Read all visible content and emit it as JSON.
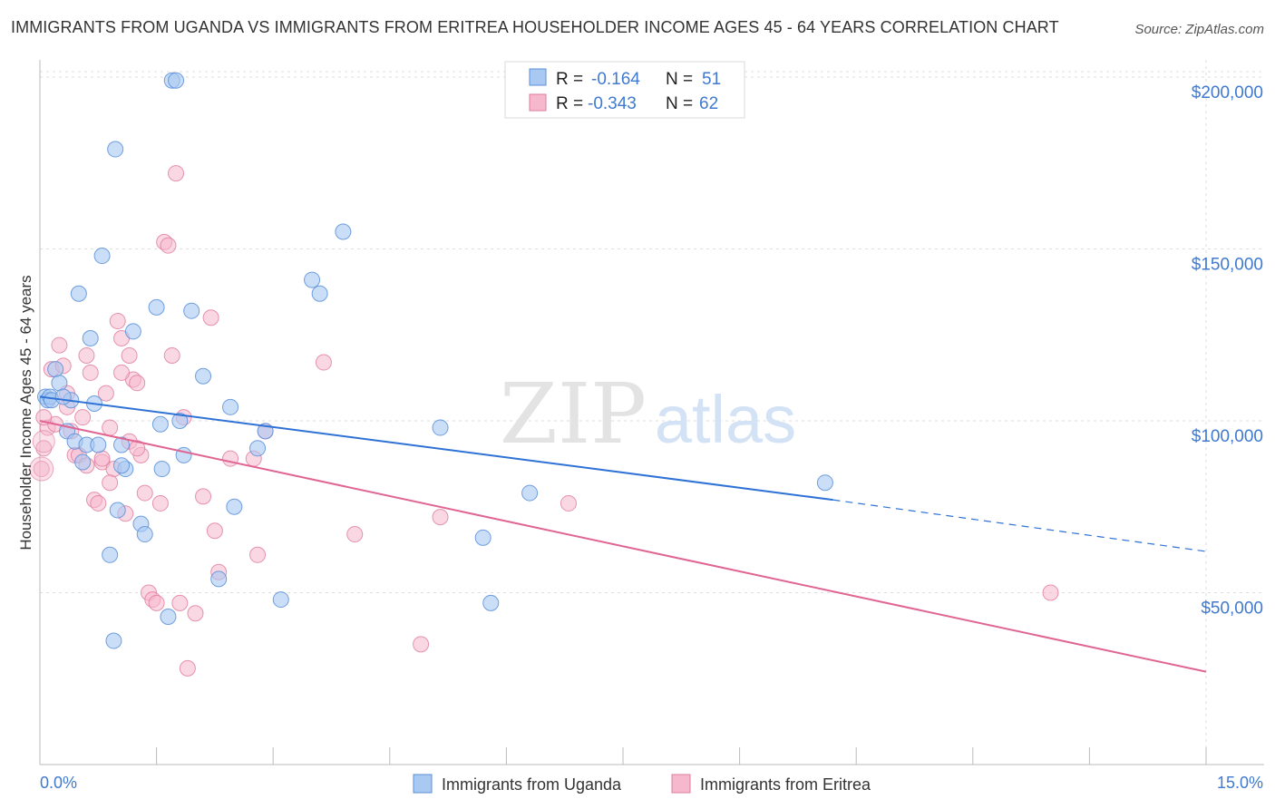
{
  "title": "IMMIGRANTS FROM UGANDA VS IMMIGRANTS FROM ERITREA HOUSEHOLDER INCOME AGES 45 - 64 YEARS CORRELATION CHART",
  "source": "Source: ZipAtlas.com",
  "watermark": {
    "zip": "ZIP",
    "atlas": "atlas"
  },
  "colors": {
    "uganda_fill": "#a9c8f2",
    "uganda_stroke": "#5b8fd9",
    "uganda_line": "#2f72d6",
    "eritrea_fill": "#f6b8cc",
    "eritrea_stroke": "#e07a9d",
    "eritrea_line": "#e06593",
    "axis_text": "#3f7ad0",
    "grid": "#dddddd"
  },
  "legend_top": [
    {
      "r_label": "R = ",
      "r_value": "-0.164",
      "n_label": "N = ",
      "n_value": "51"
    },
    {
      "r_label": "R = ",
      "r_value": "-0.343",
      "n_label": "N = ",
      "n_value": "62"
    }
  ],
  "chart_data": {
    "type": "scatter",
    "ylabel": "Householder Income Ages 45 - 64 years",
    "xlim": [
      0,
      15
    ],
    "ylim": [
      0,
      205000
    ],
    "x_tick_labels": [
      "0.0%",
      "15.0%"
    ],
    "y_ticks": [
      {
        "value": 50000,
        "label": "$50,000"
      },
      {
        "value": 100000,
        "label": "$100,000"
      },
      {
        "value": 150000,
        "label": "$150,000"
      },
      {
        "value": 200000,
        "label": "$200,000"
      }
    ],
    "grid": true,
    "series": [
      {
        "name": "Immigrants from Uganda",
        "trend": {
          "x0": 0,
          "y0": 107000,
          "x1": 10.2,
          "y1": 77000,
          "x_dash_end": 15,
          "y_dash_end": 62000
        },
        "points": [
          [
            0.07,
            107000
          ],
          [
            0.1,
            106000
          ],
          [
            0.13,
            107000
          ],
          [
            0.15,
            106000
          ],
          [
            0.2,
            115000
          ],
          [
            0.25,
            111000
          ],
          [
            0.35,
            97000
          ],
          [
            0.4,
            106000
          ],
          [
            0.45,
            94000
          ],
          [
            0.5,
            137000
          ],
          [
            0.55,
            88000
          ],
          [
            0.6,
            93000
          ],
          [
            0.65,
            124000
          ],
          [
            0.7,
            105000
          ],
          [
            0.75,
            93000
          ],
          [
            0.8,
            148000
          ],
          [
            0.9,
            61000
          ],
          [
            0.95,
            36000
          ],
          [
            0.97,
            179000
          ],
          [
            1.0,
            74000
          ],
          [
            1.05,
            93000
          ],
          [
            1.1,
            86000
          ],
          [
            1.2,
            126000
          ],
          [
            1.3,
            70000
          ],
          [
            1.35,
            67000
          ],
          [
            1.5,
            133000
          ],
          [
            1.57,
            86000
          ],
          [
            1.65,
            43000
          ],
          [
            1.7,
            199000
          ],
          [
            1.75,
            199000
          ],
          [
            1.8,
            100000
          ],
          [
            1.85,
            90000
          ],
          [
            1.95,
            132000
          ],
          [
            2.1,
            113000
          ],
          [
            2.3,
            54000
          ],
          [
            2.45,
            104000
          ],
          [
            2.5,
            75000
          ],
          [
            2.8,
            92000
          ],
          [
            2.9,
            97000
          ],
          [
            3.1,
            48000
          ],
          [
            3.5,
            141000
          ],
          [
            3.6,
            137000
          ],
          [
            3.9,
            155000
          ],
          [
            5.15,
            98000
          ],
          [
            5.7,
            66000
          ],
          [
            5.8,
            47000
          ],
          [
            6.3,
            79000
          ],
          [
            10.1,
            82000
          ],
          [
            1.55,
            99000
          ],
          [
            0.3,
            107000
          ],
          [
            1.05,
            87000
          ]
        ]
      },
      {
        "name": "Immigrants from Eritrea",
        "trend": {
          "x0": 0,
          "y0": 100000,
          "x1": 15,
          "y1": 27000
        },
        "points": [
          [
            0.02,
            86000
          ],
          [
            0.05,
            92000
          ],
          [
            0.1,
            98000
          ],
          [
            0.15,
            115000
          ],
          [
            0.2,
            99000
          ],
          [
            0.25,
            122000
          ],
          [
            0.3,
            116000
          ],
          [
            0.35,
            108000
          ],
          [
            0.4,
            97000
          ],
          [
            0.45,
            90000
          ],
          [
            0.5,
            90000
          ],
          [
            0.55,
            101000
          ],
          [
            0.6,
            87000
          ],
          [
            0.65,
            114000
          ],
          [
            0.7,
            77000
          ],
          [
            0.75,
            76000
          ],
          [
            0.8,
            88000
          ],
          [
            0.85,
            108000
          ],
          [
            0.9,
            98000
          ],
          [
            0.95,
            86000
          ],
          [
            1.0,
            129000
          ],
          [
            1.05,
            124000
          ],
          [
            1.1,
            73000
          ],
          [
            1.15,
            94000
          ],
          [
            1.2,
            112000
          ],
          [
            1.25,
            111000
          ],
          [
            1.3,
            90000
          ],
          [
            1.35,
            79000
          ],
          [
            1.4,
            50000
          ],
          [
            1.45,
            48000
          ],
          [
            1.5,
            47000
          ],
          [
            1.55,
            76000
          ],
          [
            1.6,
            152000
          ],
          [
            1.65,
            151000
          ],
          [
            1.7,
            119000
          ],
          [
            1.75,
            172000
          ],
          [
            1.8,
            47000
          ],
          [
            1.85,
            101000
          ],
          [
            1.9,
            28000
          ],
          [
            2.0,
            44000
          ],
          [
            2.1,
            78000
          ],
          [
            2.2,
            130000
          ],
          [
            2.25,
            68000
          ],
          [
            2.3,
            56000
          ],
          [
            2.45,
            89000
          ],
          [
            2.75,
            89000
          ],
          [
            2.8,
            61000
          ],
          [
            2.9,
            97000
          ],
          [
            3.65,
            117000
          ],
          [
            4.05,
            67000
          ],
          [
            4.9,
            35000
          ],
          [
            5.15,
            72000
          ],
          [
            6.8,
            76000
          ],
          [
            13.0,
            50000
          ],
          [
            0.05,
            101000
          ],
          [
            0.9,
            82000
          ],
          [
            1.05,
            114000
          ],
          [
            0.35,
            104000
          ],
          [
            0.8,
            89000
          ],
          [
            1.15,
            119000
          ],
          [
            0.6,
            119000
          ],
          [
            1.25,
            92000
          ]
        ]
      }
    ]
  }
}
